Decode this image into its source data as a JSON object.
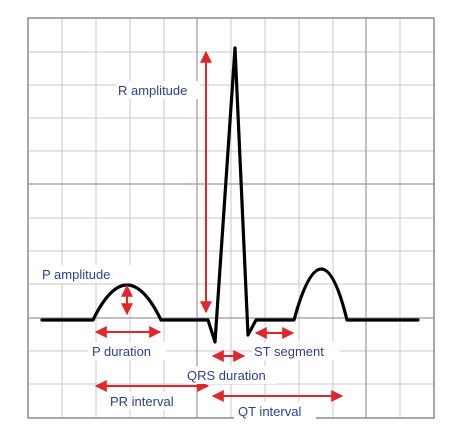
{
  "labels": {
    "r_amplitude": "R amplitude",
    "p_amplitude": "P amplitude",
    "p_duration": "P duration",
    "qrs_duration": "QRS duration",
    "st_segment": "ST segment",
    "pr_interval": "PR interval",
    "qt_interval": "QT interval"
  },
  "colors": {
    "grid_minor": "#c8c8c8",
    "grid_major": "#9a9a9a",
    "trace": "#000000",
    "arrow": "#e3262b",
    "label": "#2f3f8f"
  }
}
